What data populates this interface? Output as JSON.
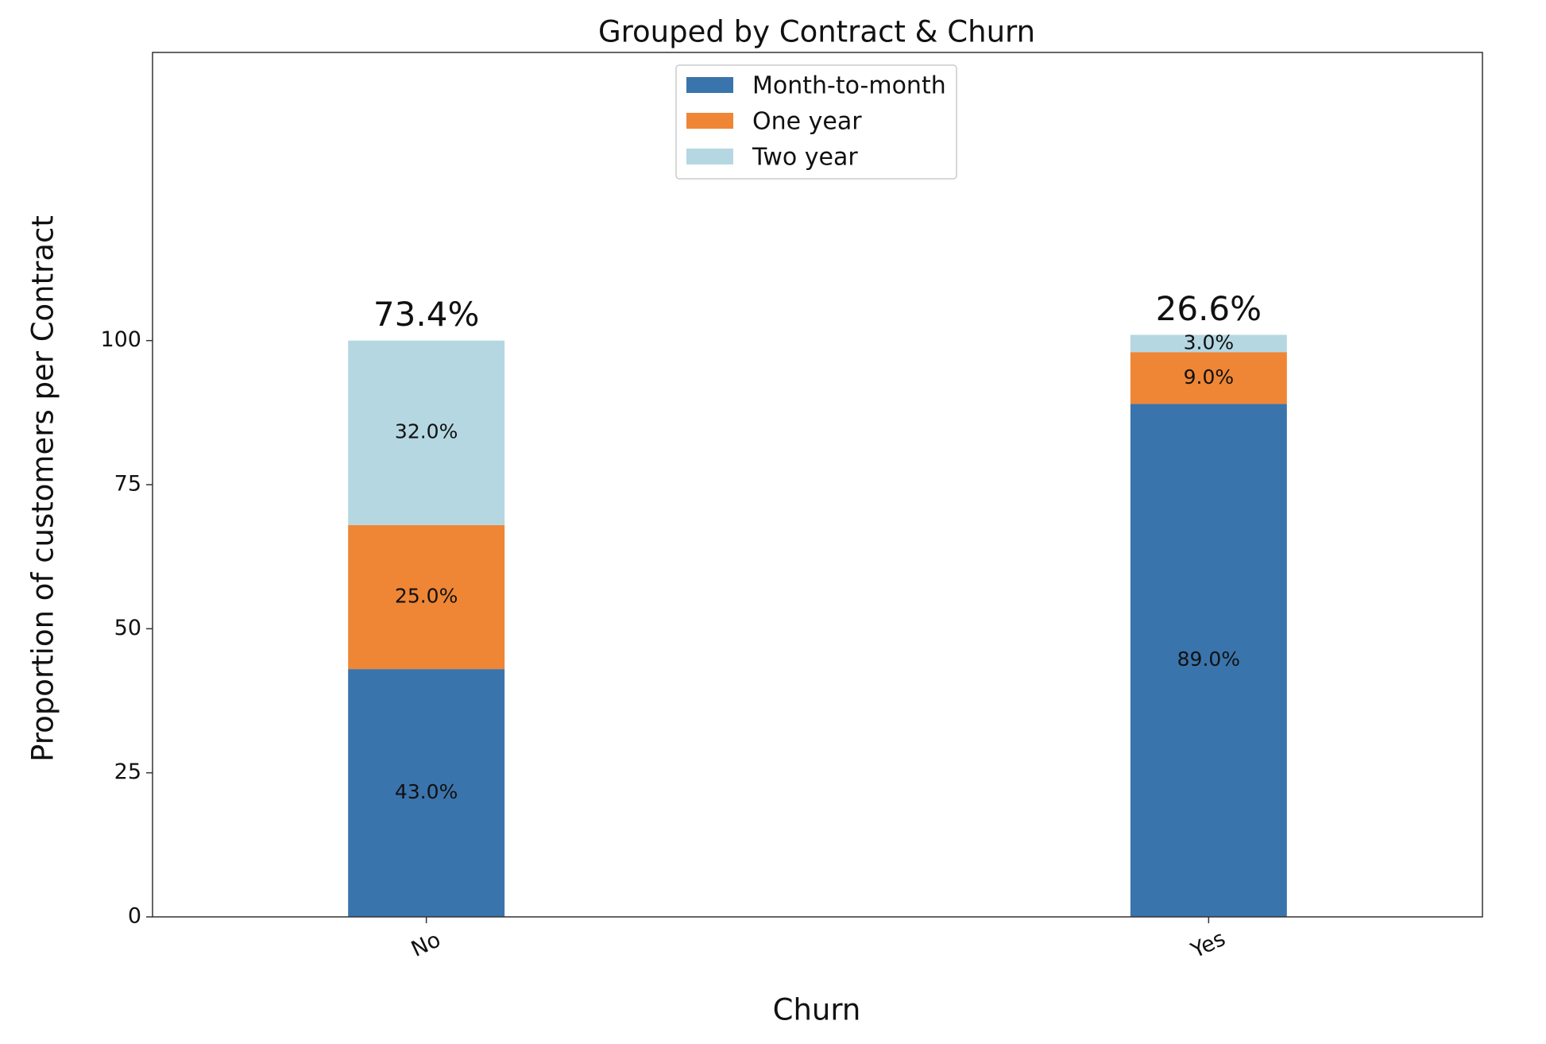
{
  "chart_data": {
    "type": "stacked_bar",
    "title": "Grouped by Contract & Churn",
    "x_label": "Churn",
    "y_label": "Proportion of customers per Contract",
    "categories": [
      "No",
      "Yes"
    ],
    "series": [
      {
        "name": "Month-to-month",
        "color": "#3a74ad",
        "values": [
          43,
          89
        ],
        "value_labels": [
          "43.0%",
          "89.0%"
        ]
      },
      {
        "name": "One year",
        "color": "#ee8636",
        "values": [
          25,
          9
        ],
        "value_labels": [
          "25.0%",
          "9.0%"
        ]
      },
      {
        "name": "Two year",
        "color": "#b5d7e2",
        "values": [
          32,
          3
        ],
        "value_labels": [
          "32.0%",
          "3.0%"
        ]
      }
    ],
    "top_labels": [
      "73.4%",
      "26.6%"
    ],
    "ylim": [
      0,
      150
    ],
    "yticks": [
      0,
      25,
      50,
      75,
      100
    ],
    "legend": "upper center"
  }
}
